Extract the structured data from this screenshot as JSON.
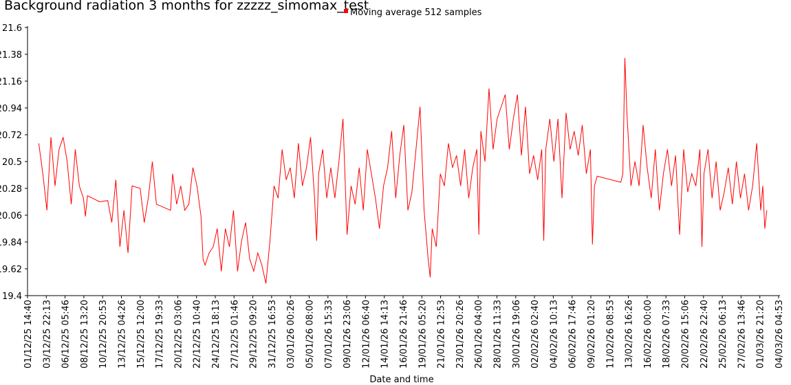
{
  "chart_data": {
    "type": "line",
    "title": "Background radiation 3 months for zzzzz_simomax_test",
    "x_label": "Date and time",
    "legend": "top",
    "xlim": [
      "01/12/25 14:40",
      "04/03/26 04:53"
    ],
    "xticks": [
      "01/12/25 14:40",
      "03/12/25 22:13",
      "06/12/25 05:46",
      "08/12/25 13:20",
      "10/12/25 20:53",
      "13/12/25 04:26",
      "15/12/25 12:00",
      "17/12/25 19:33",
      "20/12/25 03:06",
      "22/12/25 10:40",
      "24/12/25 18:13",
      "27/12/25 01:46",
      "29/12/25 09:20",
      "31/12/25 16:53",
      "03/01/26 00:26",
      "05/01/26 08:00",
      "07/01/26 15:33",
      "09/01/26 23:06",
      "12/01/26 06:40",
      "14/01/26 14:13",
      "16/01/26 21:46",
      "19/01/26 05:20",
      "21/01/26 12:53",
      "23/01/26 20:26",
      "26/01/26 04:00",
      "28/01/26 11:33",
      "30/01/26 19:06",
      "02/02/26 02:40",
      "04/02/26 10:13",
      "06/02/26 17:46",
      "09/02/26 01:20",
      "11/02/26 08:53",
      "13/02/26 16:26",
      "16/02/26 00:00",
      "18/02/26 07:33",
      "20/02/26 15:06",
      "22/02/26 22:40",
      "25/02/26 06:13",
      "27/02/26 13:46",
      "01/03/26 21:20",
      "04/03/26 04:53"
    ],
    "ylim": [
      19.4,
      21.6
    ],
    "yticks": [
      19.4,
      19.62,
      19.84,
      20.06,
      20.28,
      20.5,
      20.72,
      20.94,
      21.16,
      21.38,
      21.6
    ],
    "grid": false,
    "x": [
      "03/12/25 00:00",
      "03/12/25 12:00",
      "04/12/25 00:00",
      "04/12/25 12:00",
      "05/12/25 00:00",
      "05/12/25 12:00",
      "06/12/25 00:00",
      "06/12/25 12:00",
      "07/12/25 00:00",
      "07/12/25 12:00",
      "08/12/25 00:00",
      "08/12/25 12:00",
      "08/12/25 18:00",
      "09/12/25 00:00",
      "10/12/25 12:00",
      "11/12/25 12:00",
      "12/12/25 00:00",
      "12/12/25 12:00",
      "13/12/25 00:00",
      "13/12/25 12:00",
      "14/12/25 00:00",
      "14/12/25 12:00",
      "15/12/25 12:00",
      "16/12/25 00:00",
      "16/12/25 12:00",
      "17/12/25 00:00",
      "17/12/25 12:00",
      "19/12/25 06:00",
      "19/12/25 12:00",
      "20/12/25 00:00",
      "20/12/25 12:00",
      "21/12/25 00:00",
      "21/12/25 12:00",
      "22/12/25 00:00",
      "22/12/25 12:00",
      "23/12/25 00:00",
      "23/12/25 06:00",
      "23/12/25 12:00",
      "24/12/25 00:00",
      "24/12/25 12:00",
      "25/12/25 00:00",
      "25/12/25 12:00",
      "26/12/25 00:00",
      "26/12/25 12:00",
      "27/12/25 00:00",
      "27/12/25 12:00",
      "28/12/25 00:00",
      "28/12/25 12:00",
      "29/12/25 00:00",
      "29/12/25 12:00",
      "30/12/25 00:00",
      "30/12/25 12:00",
      "31/12/25 00:00",
      "31/12/25 12:00",
      "01/01/26 00:00",
      "01/01/26 12:00",
      "02/01/26 00:00",
      "02/01/26 12:00",
      "03/01/26 00:00",
      "03/01/26 12:00",
      "04/01/26 00:00",
      "04/01/26 12:00",
      "05/01/26 00:00",
      "05/01/26 12:00",
      "06/01/26 00:00",
      "06/01/26 06:00",
      "06/01/26 12:00",
      "07/01/26 00:00",
      "07/01/26 12:00",
      "08/01/26 00:00",
      "08/01/26 12:00",
      "09/01/26 00:00",
      "09/01/26 12:00",
      "10/01/26 00:00",
      "10/01/26 12:00",
      "11/01/26 00:00",
      "11/01/26 12:00",
      "12/01/26 00:00",
      "12/01/26 12:00",
      "13/01/26 00:00",
      "13/01/26 12:00",
      "14/01/26 00:00",
      "14/01/26 12:00",
      "15/01/26 00:00",
      "15/01/26 12:00",
      "16/01/26 00:00",
      "16/01/26 12:00",
      "17/01/26 00:00",
      "17/01/26 12:00",
      "18/01/26 00:00",
      "18/01/26 12:00",
      "19/01/26 00:00",
      "19/01/26 12:00",
      "20/01/26 00:00",
      "20/01/26 06:00",
      "20/01/26 12:00",
      "21/01/26 00:00",
      "21/01/26 12:00",
      "22/01/26 00:00",
      "22/01/26 12:00",
      "23/01/26 00:00",
      "23/01/26 12:00",
      "24/01/26 00:00",
      "24/01/26 12:00",
      "25/01/26 00:00",
      "25/01/26 12:00",
      "26/01/26 00:00",
      "26/01/26 06:00",
      "26/01/26 12:00",
      "27/01/26 00:00",
      "27/01/26 12:00",
      "28/01/26 00:00",
      "28/01/26 12:00",
      "29/01/26 00:00",
      "29/01/26 12:00",
      "30/01/26 00:00",
      "30/01/26 12:00",
      "31/01/26 00:00",
      "31/01/26 12:00",
      "01/02/26 00:00",
      "01/02/26 12:00",
      "02/02/26 00:00",
      "02/02/26 12:00",
      "03/02/26 00:00",
      "03/02/26 06:00",
      "03/02/26 12:00",
      "04/02/26 00:00",
      "04/02/26 12:00",
      "05/02/26 00:00",
      "05/02/26 12:00",
      "06/02/26 00:00",
      "06/02/26 12:00",
      "07/02/26 00:00",
      "07/02/26 12:00",
      "08/02/26 00:00",
      "08/02/26 12:00",
      "09/02/26 00:00",
      "09/02/26 06:00",
      "09/02/26 12:00",
      "09/02/26 20:00",
      "12/02/26 18:00",
      "13/02/26 00:00",
      "13/02/26 06:00",
      "13/02/26 12:00",
      "14/02/26 00:00",
      "14/02/26 12:00",
      "15/02/26 00:00",
      "15/02/26 12:00",
      "16/02/26 00:00",
      "16/02/26 12:00",
      "17/02/26 00:00",
      "17/02/26 12:00",
      "18/02/26 00:00",
      "18/02/26 12:00",
      "19/02/26 00:00",
      "19/02/26 12:00",
      "20/02/26 00:00",
      "20/02/26 12:00",
      "21/02/26 00:00",
      "21/02/26 12:00",
      "22/02/26 00:00",
      "22/02/26 12:00",
      "22/02/26 18:00",
      "23/02/26 00:00",
      "23/02/26 12:00",
      "24/02/26 00:00",
      "24/02/26 12:00",
      "25/02/26 00:00",
      "25/02/26 12:00",
      "26/02/26 00:00",
      "26/02/26 12:00",
      "27/02/26 00:00",
      "27/02/26 12:00",
      "28/02/26 00:00",
      "28/02/26 12:00",
      "01/03/26 00:00",
      "01/03/26 12:00",
      "02/03/26 00:00",
      "02/03/26 06:00",
      "02/03/26 12:00",
      "02/03/26 18:00"
    ],
    "series": [
      {
        "name": "Moving average 512 samples",
        "color": "#ff0000",
        "values": [
          20.65,
          20.4,
          20.1,
          20.7,
          20.3,
          20.6,
          20.7,
          20.5,
          20.15,
          20.6,
          20.3,
          20.2,
          20.05,
          20.22,
          20.17,
          20.18,
          20.0,
          20.35,
          19.8,
          20.1,
          19.75,
          20.3,
          20.28,
          20.0,
          20.2,
          20.5,
          20.15,
          20.1,
          20.4,
          20.15,
          20.3,
          20.1,
          20.15,
          20.45,
          20.3,
          20.05,
          19.7,
          19.65,
          19.75,
          19.8,
          19.95,
          19.6,
          19.95,
          19.8,
          20.1,
          19.6,
          19.85,
          20.0,
          19.7,
          19.6,
          19.75,
          19.65,
          19.5,
          19.85,
          20.3,
          20.2,
          20.6,
          20.35,
          20.45,
          20.2,
          20.65,
          20.3,
          20.45,
          20.7,
          20.2,
          19.85,
          20.4,
          20.6,
          20.2,
          20.45,
          20.2,
          20.5,
          20.85,
          19.9,
          20.3,
          20.15,
          20.45,
          20.1,
          20.6,
          20.4,
          20.2,
          19.95,
          20.3,
          20.45,
          20.75,
          20.2,
          20.55,
          20.8,
          20.1,
          20.25,
          20.6,
          20.95,
          20.1,
          19.7,
          19.55,
          19.95,
          19.8,
          20.4,
          20.3,
          20.65,
          20.45,
          20.55,
          20.3,
          20.6,
          20.2,
          20.45,
          20.6,
          19.9,
          20.75,
          20.5,
          21.1,
          20.6,
          20.85,
          20.95,
          21.05,
          20.6,
          20.85,
          21.05,
          20.55,
          20.95,
          20.4,
          20.55,
          20.35,
          20.6,
          19.85,
          20.6,
          20.85,
          20.5,
          20.85,
          20.2,
          20.9,
          20.6,
          20.75,
          20.55,
          20.8,
          20.4,
          20.6,
          19.82,
          20.3,
          20.38,
          20.33,
          20.4,
          21.35,
          20.9,
          20.3,
          20.5,
          20.3,
          20.8,
          20.45,
          20.2,
          20.6,
          20.1,
          20.4,
          20.6,
          20.3,
          20.55,
          19.9,
          20.6,
          20.25,
          20.4,
          20.3,
          20.6,
          19.8,
          20.4,
          20.6,
          20.2,
          20.5,
          20.1,
          20.25,
          20.45,
          20.15,
          20.5,
          20.2,
          20.4,
          20.1,
          20.3,
          20.65,
          20.1,
          20.3,
          19.95,
          20.1
        ]
      }
    ]
  }
}
